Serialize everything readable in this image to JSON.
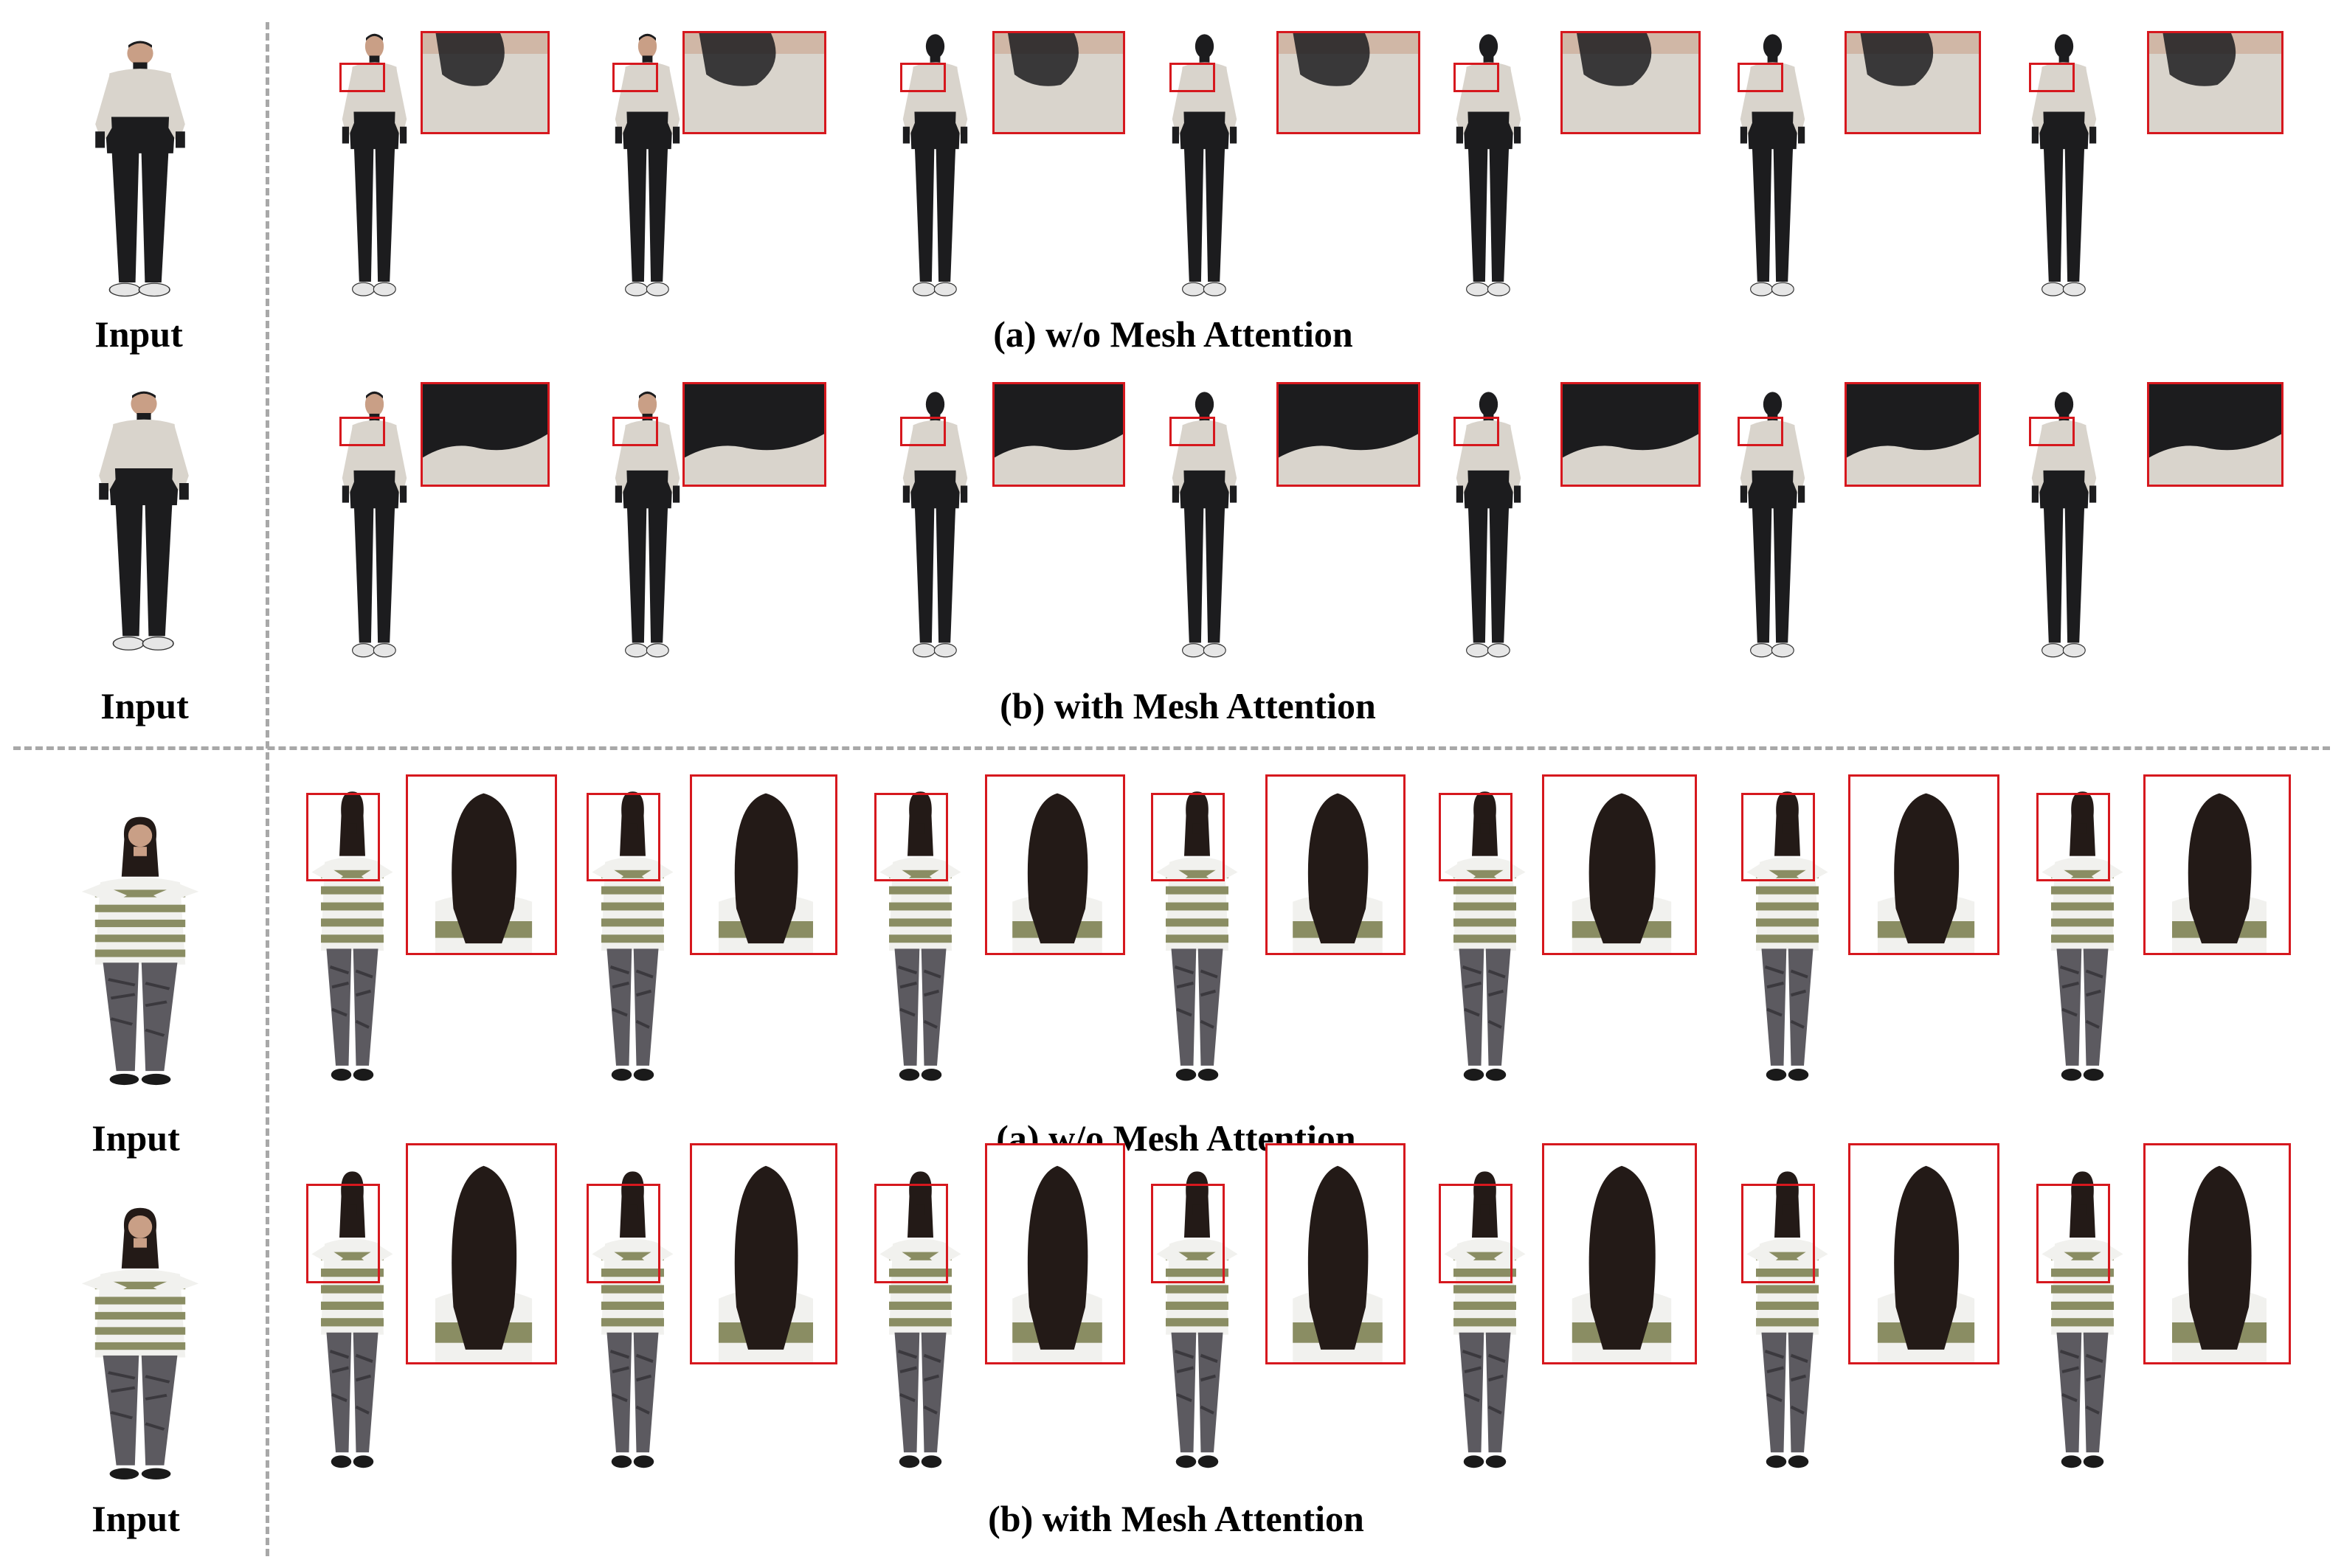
{
  "figure": {
    "groups": [
      {
        "input_label": "Input",
        "caption": "(a) w/o Mesh Attention"
      },
      {
        "input_label": "Input",
        "caption": "(b) with Mesh Attention"
      },
      {
        "input_label": "Input",
        "caption": "(a) w/o Mesh Attention"
      },
      {
        "input_label": "Input",
        "caption": "(b) with Mesh Attention"
      }
    ]
  },
  "colors": {
    "highlight_box": "#d6181e",
    "divider": "#a8a8a8",
    "jacket_light": "#d9d4cc",
    "jacket_dark": "#1c1c1e",
    "sweater_white": "#f1f1ee",
    "sweater_green": "#8a8d63",
    "pants_pattern": "#5c5a60",
    "skin": "#c99f86",
    "hair": "#231a17"
  },
  "subjects": [
    "man-in-two-tone-jacket",
    "woman-in-striped-sweater"
  ]
}
